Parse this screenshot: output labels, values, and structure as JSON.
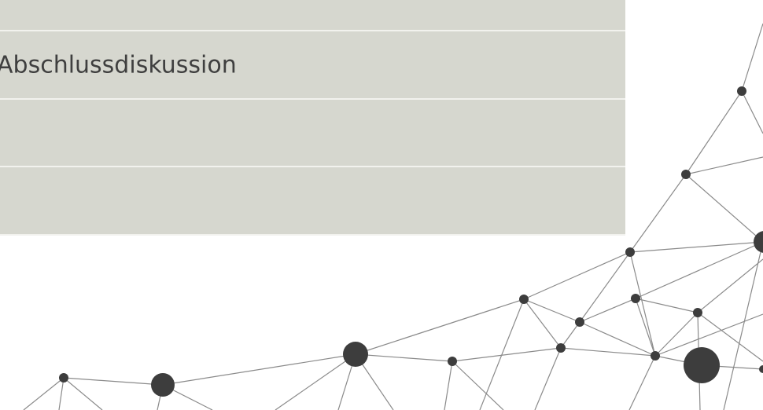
{
  "table": {
    "rows": [
      {
        "cells": [
          "Abschlussdiskussion"
        ]
      }
    ]
  }
}
